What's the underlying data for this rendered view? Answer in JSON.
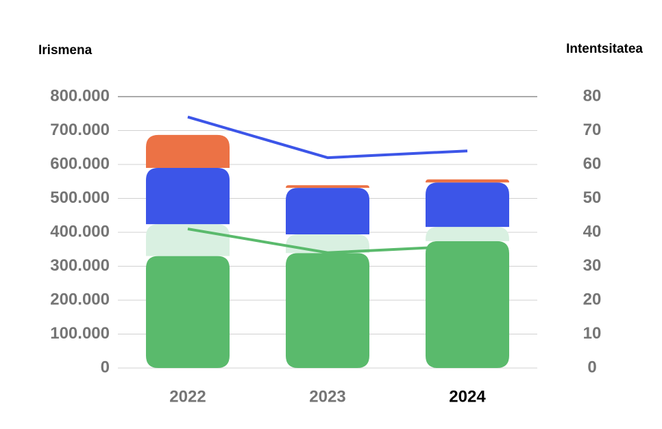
{
  "chart_data": {
    "type": "bar",
    "y_title": "Irismena",
    "y2_title": "Intentsitatea",
    "categories": [
      "2022",
      "2023",
      "2024"
    ],
    "highlight_index": 2,
    "stacked": true,
    "grid": true,
    "ylim": [
      0,
      800000
    ],
    "yticks": [
      {
        "value": 0,
        "label": "0"
      },
      {
        "value": 100000,
        "label": "100.000"
      },
      {
        "value": 200000,
        "label": "200.000"
      },
      {
        "value": 300000,
        "label": "300.000"
      },
      {
        "value": 400000,
        "label": "400.000"
      },
      {
        "value": 500000,
        "label": "500.000"
      },
      {
        "value": 600000,
        "label": "600.000"
      },
      {
        "value": 700000,
        "label": "700.000"
      },
      {
        "value": 800000,
        "label": "800.000"
      }
    ],
    "y2lim": [
      0,
      80
    ],
    "y2ticks": [
      0,
      10,
      20,
      30,
      40,
      50,
      60,
      70,
      80
    ],
    "series": [
      {
        "type": "bar",
        "color": "#5aba6c",
        "values": [
          330000,
          339000,
          374000
        ]
      },
      {
        "type": "bar",
        "color": "#d9f0e1",
        "values": [
          94000,
          55000,
          42000
        ]
      },
      {
        "type": "bar",
        "color": "#3c55e8",
        "values": [
          166000,
          137000,
          131000
        ]
      },
      {
        "type": "bar",
        "color": "#ec7245",
        "values": [
          97000,
          8000,
          9000
        ]
      },
      {
        "type": "line",
        "axis": "y2",
        "color": "#3c55e8",
        "values": [
          74,
          62,
          64
        ]
      },
      {
        "type": "line",
        "axis": "y2",
        "color": "#5aba6c",
        "values": [
          41,
          34,
          36
        ]
      }
    ]
  }
}
